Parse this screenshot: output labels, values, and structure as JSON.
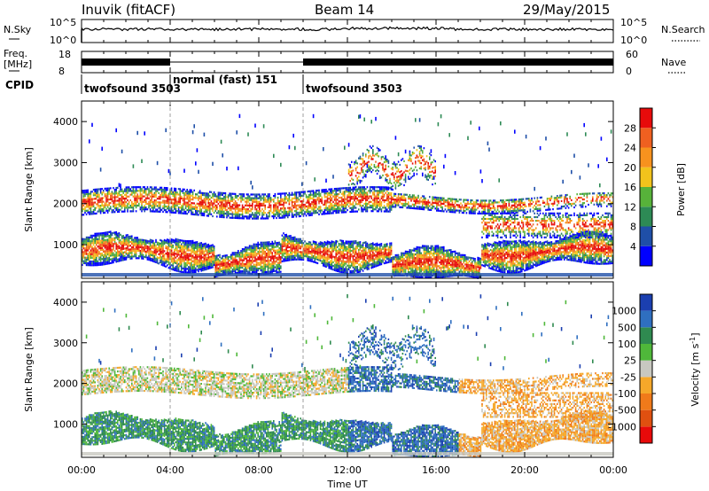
{
  "header": {
    "station": "Inuvik (fitACF)",
    "beam": "Beam 14",
    "date": "29/May/2015"
  },
  "strip_panels": {
    "nsky": {
      "label": "N.Sky",
      "ticks": [
        "10^5",
        "10^0"
      ]
    },
    "nsearch": {
      "label": "N.Search",
      "ticks": [
        "10^5",
        "10^0"
      ]
    },
    "freq": {
      "label_top": "Freq.",
      "label_bottom": "[MHz]",
      "ticks": [
        "18",
        "8"
      ]
    },
    "nave": {
      "label": "Nave",
      "ticks": [
        "60",
        "0"
      ]
    },
    "cpid": {
      "label": "CPID",
      "segments": [
        {
          "name": "twofsound 3503",
          "start_h": 0,
          "end_h": 4
        },
        {
          "name": "normal (fast) 151",
          "start_h": 4,
          "end_h": 10
        },
        {
          "name": "twofsound 3503",
          "start_h": 10,
          "end_h": 24
        }
      ]
    }
  },
  "chart_data": [
    {
      "type": "heatmap",
      "title": "",
      "xlabel": "",
      "ylabel": "Slant Range [km]",
      "x_range_hours": [
        0,
        24
      ],
      "y_range_km": [
        180,
        4500
      ],
      "y_ticks": [
        1000,
        2000,
        3000,
        4000
      ],
      "colorbar": {
        "label": "Power [dB]",
        "range": [
          0,
          32
        ],
        "tick_labels": [
          "4",
          "8",
          "12",
          "16",
          "20",
          "24",
          "28"
        ],
        "colors": [
          "#0000ff",
          "#1f4fa8",
          "#2d8a55",
          "#57b23a",
          "#f2c31c",
          "#f7921e",
          "#ef6020",
          "#e70b0b"
        ]
      },
      "scatter_layers_km": [
        {
          "name": "lower-band",
          "center_start": 900,
          "center_end": 900,
          "thickness": 350
        },
        {
          "name": "upper-band",
          "center_start": 2050,
          "center_end": 2050,
          "thickness": 350
        }
      ]
    },
    {
      "type": "heatmap",
      "title": "",
      "xlabel": "Time UT",
      "ylabel": "Slant Range [km]",
      "x_range_hours": [
        0,
        24
      ],
      "y_range_km": [
        180,
        4500
      ],
      "y_ticks": [
        1000,
        2000,
        3000,
        4000
      ],
      "x_tick_labels": [
        "00:00",
        "04:00",
        "08:00",
        "12:00",
        "16:00",
        "20:00",
        "00:00"
      ],
      "colorbar": {
        "label": "Velocity [m s-1]",
        "label_main": "Velocity [m s",
        "label_sup": "-1",
        "label_close": "]",
        "tick_labels": [
          "1000",
          "500",
          "100",
          "25",
          "-25",
          "-100",
          "-500",
          "-1000"
        ],
        "colors": [
          "#1b3fb0",
          "#2f6fc0",
          "#2f8a50",
          "#4fb83a",
          "#c8c8c0",
          "#f5a82a",
          "#f07a1a",
          "#e05010",
          "#e80a0a"
        ]
      }
    }
  ],
  "x_axis": {
    "ticks_hours": [
      0,
      4,
      8,
      12,
      16,
      20,
      24
    ]
  }
}
